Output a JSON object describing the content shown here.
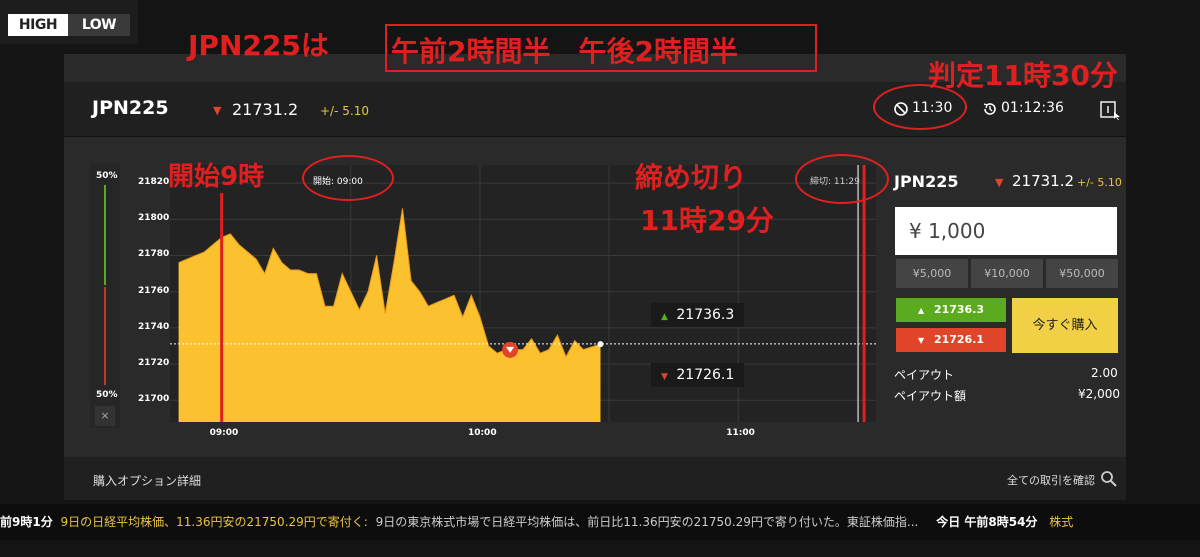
{
  "logo": {
    "high": "HIGH",
    "low": "LOW"
  },
  "annotations": {
    "headline": "JPN225は",
    "session_box": "午前2時間半　午後2時間半",
    "judgment": "判定11時30分",
    "start": "開始9時",
    "deadline_line1": "締め切り",
    "deadline_line2": "11時29分"
  },
  "header": {
    "asset": "JPN225",
    "price": "21731.2",
    "change": "+/- 5.10",
    "expiry_time": "11:30",
    "countdown": "01:12:36"
  },
  "chart": {
    "start_label": "開始: 09:00",
    "deadline_label": "締切: 11:29",
    "sentiment_top": "50%",
    "sentiment_bottom": "50%",
    "sentiment_close": "×",
    "high_price": "21736.3",
    "low_price": "21726.1",
    "colors": {
      "area": "#fbc12f",
      "high": "#5aab1e",
      "low": "#e0452a"
    }
  },
  "chart_data": {
    "type": "area",
    "x": [
      "08:50",
      "08:52",
      "08:54",
      "08:56",
      "08:58",
      "09:00",
      "09:02",
      "09:04",
      "09:06",
      "09:08",
      "09:10",
      "09:12",
      "09:14",
      "09:16",
      "09:18",
      "09:20",
      "09:22",
      "09:24",
      "09:26",
      "09:28",
      "09:30",
      "09:32",
      "09:34",
      "09:36",
      "09:38",
      "09:40",
      "09:42",
      "09:44",
      "09:46",
      "09:48",
      "09:50",
      "09:52",
      "09:54",
      "09:56",
      "09:58",
      "10:00",
      "10:02",
      "10:04",
      "10:06",
      "10:08",
      "10:10",
      "10:12",
      "10:14",
      "10:16",
      "10:18",
      "10:20",
      "10:22",
      "10:24",
      "10:28"
    ],
    "y": [
      21776,
      21778,
      21780,
      21782,
      21786,
      21790,
      21792,
      21786,
      21782,
      21778,
      21770,
      21784,
      21776,
      21772,
      21772,
      21770,
      21770,
      21752,
      21752,
      21770,
      21760,
      21750,
      21760,
      21780,
      21748,
      21776,
      21806,
      21766,
      21760,
      21752,
      21754,
      21756,
      21758,
      21746,
      21758,
      21746,
      21730,
      21726,
      21728,
      21728,
      21728,
      21734,
      21726,
      21728,
      21736,
      21724,
      21733,
      21728,
      21731
    ],
    "x_ticks": [
      "09:00",
      "10:00",
      "11:00"
    ],
    "y_ticks": [
      21820,
      21800,
      21780,
      21760,
      21740,
      21720,
      21700
    ],
    "ylim": [
      21688,
      21830
    ],
    "xlim": [
      "08:48",
      "11:32"
    ],
    "reference_line": 21731.2,
    "grid": true
  },
  "trade": {
    "asset": "JPN225",
    "price": "21731.2",
    "change": "+/- 5.10",
    "amount": "¥ 1,000",
    "quick_amounts": [
      "¥5,000",
      "¥10,000",
      "¥50,000"
    ],
    "high_label": "21736.3",
    "low_label": "21726.1",
    "buy_now": "今すぐ購入",
    "payout_label": "ペイアウト",
    "payout_value": "2.00",
    "payout_amount_label": "ペイアウト額",
    "payout_amount_value": "¥2,000"
  },
  "details": {
    "title": "購入オプション詳細",
    "all_trades": "全ての取引を確認"
  },
  "ticker": {
    "time1": "前9時1分",
    "headline": "9日の日経平均株価、11.36円安の21750.29円で寄付く:",
    "body": "9日の東京株式市場で日経平均株価は、前日比11.36円安の21750.29円で寄り付いた。東証株価指...",
    "time2": "今日 午前8時54分",
    "tail": "株式"
  }
}
